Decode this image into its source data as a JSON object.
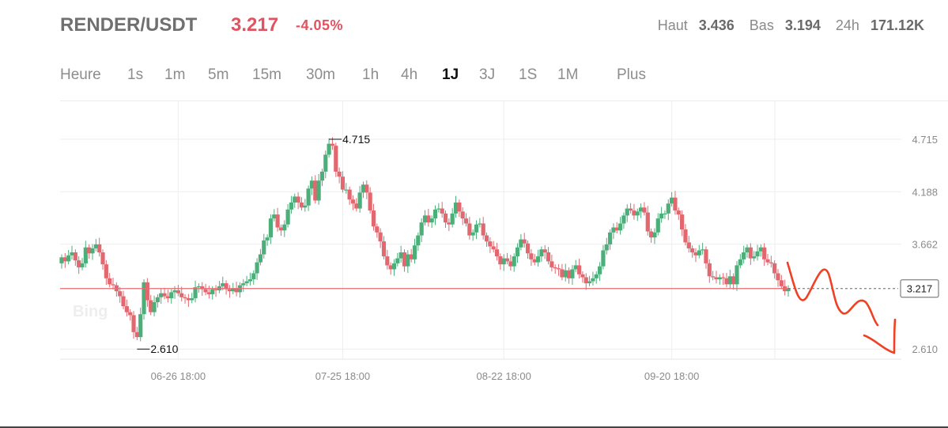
{
  "header": {
    "pair": "RENDER/USDT",
    "price": "3.217",
    "change": "-4.05%",
    "high_label": "Haut",
    "high_value": "3.436",
    "low_label": "Bas",
    "low_value": "3.194",
    "vol_label": "24h",
    "vol_value": "171.12K"
  },
  "tabs": [
    {
      "label": "Heure"
    },
    {
      "label": "1s"
    },
    {
      "label": "1m"
    },
    {
      "label": "5m"
    },
    {
      "label": "15m"
    },
    {
      "label": "30m"
    },
    {
      "label": "1h"
    },
    {
      "label": "4h"
    },
    {
      "label": "1J",
      "active": true
    },
    {
      "label": "3J"
    },
    {
      "label": "1S"
    },
    {
      "label": "1M"
    },
    {
      "label": "Plus"
    }
  ],
  "watermark": "Bing",
  "colors": {
    "up": "#4caf7a",
    "down": "#e3676f",
    "price_line": "#e46c70",
    "drawing": "#ef4124"
  },
  "chart_data": {
    "type": "candlestick",
    "title": "",
    "xlabel": "",
    "ylabel": "",
    "y_ticks": [
      "4.715",
      "4.188",
      "3.662",
      "2.610"
    ],
    "y_tick_values": [
      4.715,
      4.188,
      3.662,
      2.61
    ],
    "x_ticks": [
      "06-26 18:00",
      "07-25 18:00",
      "08-22 18:00",
      "09-20 18:00"
    ],
    "ylim": [
      2.2,
      5.1
    ],
    "grid": true,
    "current_price": "3.217",
    "max_label": "4.715",
    "min_label": "2.610",
    "series": {
      "close": [
        3.53,
        3.49,
        3.55,
        3.58,
        3.5,
        3.43,
        3.47,
        3.63,
        3.57,
        3.62,
        3.66,
        3.58,
        3.46,
        3.32,
        3.26,
        3.25,
        3.19,
        3.14,
        3.04,
        2.98,
        2.95,
        2.78,
        2.73,
        2.96,
        3.28,
        3.1,
        2.98,
        3.08,
        3.13,
        3.17,
        3.14,
        3.12,
        3.18,
        3.2,
        3.17,
        3.13,
        3.12,
        3.1,
        3.12,
        3.23,
        3.24,
        3.21,
        3.18,
        3.16,
        3.21,
        3.2,
        3.24,
        3.27,
        3.21,
        3.19,
        3.22,
        3.18,
        3.25,
        3.27,
        3.29,
        3.31,
        3.37,
        3.48,
        3.56,
        3.7,
        3.73,
        3.92,
        3.96,
        3.83,
        3.8,
        3.86,
        4.01,
        4.08,
        4.14,
        4.08,
        4.03,
        4.05,
        4.22,
        4.3,
        4.1,
        4.3,
        4.39,
        4.56,
        4.67,
        4.65,
        4.39,
        4.34,
        4.21,
        4.21,
        4.11,
        4.07,
        4.02,
        4.18,
        4.26,
        4.18,
        4.0,
        3.84,
        3.78,
        3.69,
        3.54,
        3.45,
        3.41,
        3.47,
        3.52,
        3.58,
        3.44,
        3.56,
        3.51,
        3.65,
        3.75,
        3.88,
        3.95,
        3.88,
        3.92,
        4.01,
        4.02,
        3.97,
        3.88,
        3.86,
        3.97,
        4.08,
        3.99,
        3.92,
        3.87,
        3.75,
        3.78,
        3.86,
        3.87,
        3.75,
        3.69,
        3.64,
        3.61,
        3.54,
        3.46,
        3.52,
        3.49,
        3.44,
        3.54,
        3.63,
        3.71,
        3.67,
        3.57,
        3.51,
        3.48,
        3.54,
        3.61,
        3.58,
        3.49,
        3.43,
        3.42,
        3.41,
        3.33,
        3.4,
        3.32,
        3.41,
        3.45,
        3.36,
        3.33,
        3.27,
        3.29,
        3.32,
        3.36,
        3.44,
        3.6,
        3.66,
        3.78,
        3.83,
        3.8,
        3.87,
        3.95,
        4.02,
        4.0,
        3.95,
        3.99,
        4.03,
        3.98,
        3.79,
        3.73,
        3.78,
        3.92,
        3.97,
        3.97,
        4.07,
        4.13,
        4.0,
        3.96,
        3.81,
        3.68,
        3.62,
        3.58,
        3.55,
        3.6,
        3.61,
        3.47,
        3.34,
        3.33,
        3.31,
        3.33,
        3.32,
        3.26,
        3.34,
        3.26,
        3.45,
        3.51,
        3.58,
        3.63,
        3.52,
        3.54,
        3.59,
        3.63,
        3.51,
        3.48,
        3.47,
        3.37,
        3.3,
        3.24,
        3.19,
        3.22
      ],
      "open": [
        3.47,
        3.53,
        3.49,
        3.55,
        3.58,
        3.5,
        3.43,
        3.47,
        3.63,
        3.57,
        3.62,
        3.66,
        3.58,
        3.46,
        3.32,
        3.26,
        3.25,
        3.19,
        3.14,
        3.04,
        2.98,
        2.95,
        2.78,
        2.73,
        2.96,
        3.28,
        3.1,
        2.98,
        3.08,
        3.13,
        3.17,
        3.14,
        3.12,
        3.18,
        3.2,
        3.17,
        3.13,
        3.12,
        3.1,
        3.12,
        3.23,
        3.24,
        3.21,
        3.18,
        3.16,
        3.21,
        3.2,
        3.24,
        3.27,
        3.21,
        3.19,
        3.22,
        3.18,
        3.25,
        3.27,
        3.29,
        3.31,
        3.37,
        3.48,
        3.56,
        3.7,
        3.73,
        3.92,
        3.96,
        3.83,
        3.8,
        3.86,
        4.01,
        4.08,
        4.14,
        4.08,
        4.03,
        4.05,
        4.22,
        4.3,
        4.1,
        4.3,
        4.39,
        4.56,
        4.67,
        4.65,
        4.39,
        4.34,
        4.21,
        4.21,
        4.11,
        4.07,
        4.02,
        4.18,
        4.26,
        4.18,
        4.0,
        3.84,
        3.78,
        3.69,
        3.54,
        3.45,
        3.41,
        3.47,
        3.52,
        3.58,
        3.44,
        3.56,
        3.51,
        3.65,
        3.75,
        3.88,
        3.95,
        3.88,
        3.92,
        4.01,
        4.02,
        3.97,
        3.88,
        3.86,
        3.97,
        4.08,
        3.99,
        3.92,
        3.87,
        3.75,
        3.78,
        3.86,
        3.87,
        3.75,
        3.69,
        3.64,
        3.61,
        3.54,
        3.46,
        3.52,
        3.49,
        3.44,
        3.54,
        3.63,
        3.71,
        3.67,
        3.57,
        3.51,
        3.48,
        3.54,
        3.61,
        3.58,
        3.49,
        3.43,
        3.42,
        3.41,
        3.33,
        3.4,
        3.32,
        3.41,
        3.45,
        3.36,
        3.33,
        3.27,
        3.29,
        3.32,
        3.36,
        3.44,
        3.6,
        3.66,
        3.78,
        3.83,
        3.8,
        3.87,
        3.95,
        4.02,
        4.0,
        3.95,
        3.99,
        4.03,
        3.98,
        3.79,
        3.73,
        3.78,
        3.92,
        3.97,
        3.97,
        4.07,
        4.13,
        4.0,
        3.96,
        3.81,
        3.68,
        3.62,
        3.58,
        3.55,
        3.6,
        3.61,
        3.47,
        3.34,
        3.33,
        3.31,
        3.33,
        3.32,
        3.26,
        3.34,
        3.26,
        3.45,
        3.51,
        3.58,
        3.63,
        3.52,
        3.54,
        3.59,
        3.63,
        3.51,
        3.48,
        3.47,
        3.37,
        3.3,
        3.24,
        3.19
      ]
    }
  }
}
